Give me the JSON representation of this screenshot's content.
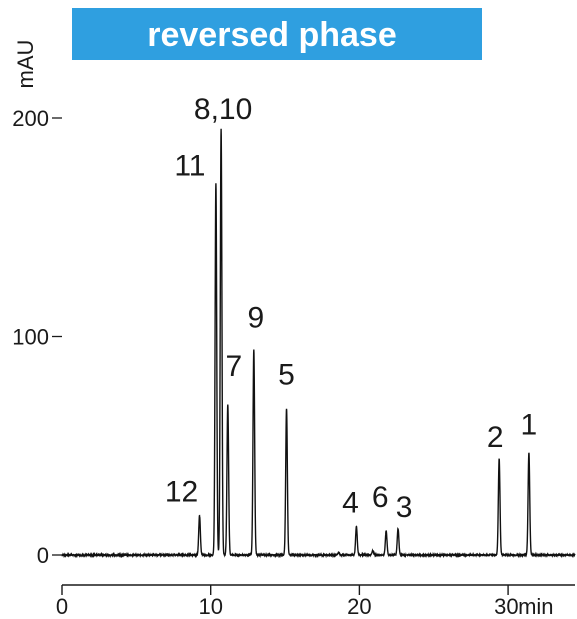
{
  "chart_data": {
    "type": "line",
    "title": "reversed phase",
    "xlabel": "min",
    "ylabel": "mAU",
    "xlim": [
      0,
      34.5
    ],
    "ylim": [
      0,
      200
    ],
    "x_ticks": [
      0,
      10,
      20,
      30
    ],
    "x_tick_labels": [
      "0",
      "10",
      "20",
      "30"
    ],
    "y_ticks": [
      0,
      100,
      200
    ],
    "y_tick_labels": [
      "0",
      "100",
      "200"
    ],
    "grid": false,
    "legend": "none",
    "peaks": [
      {
        "label": "12",
        "rt": 9.25,
        "height": 18
      },
      {
        "label": "11",
        "rt": 10.35,
        "height": 170
      },
      {
        "label": "8,10",
        "rt": 10.7,
        "height": 195
      },
      {
        "label": "7",
        "rt": 11.15,
        "height": 69
      },
      {
        "label": "9",
        "rt": 12.9,
        "height": 94
      },
      {
        "label": "5",
        "rt": 15.1,
        "height": 67
      },
      {
        "label": "4",
        "rt": 19.8,
        "height": 13
      },
      {
        "label": "6",
        "rt": 21.8,
        "height": 11
      },
      {
        "label": "3",
        "rt": 22.6,
        "height": 12
      },
      {
        "label": "2",
        "rt": 29.4,
        "height": 44
      },
      {
        "label": "1",
        "rt": 31.4,
        "height": 47
      }
    ],
    "minor_peaks": [
      {
        "rt": 20.9,
        "height": 2
      },
      {
        "rt": 18.6,
        "height": 1
      }
    ],
    "colors": {
      "banner": "#2f9fe0",
      "trace": "#111111",
      "axis": "#1a1a1a"
    }
  }
}
